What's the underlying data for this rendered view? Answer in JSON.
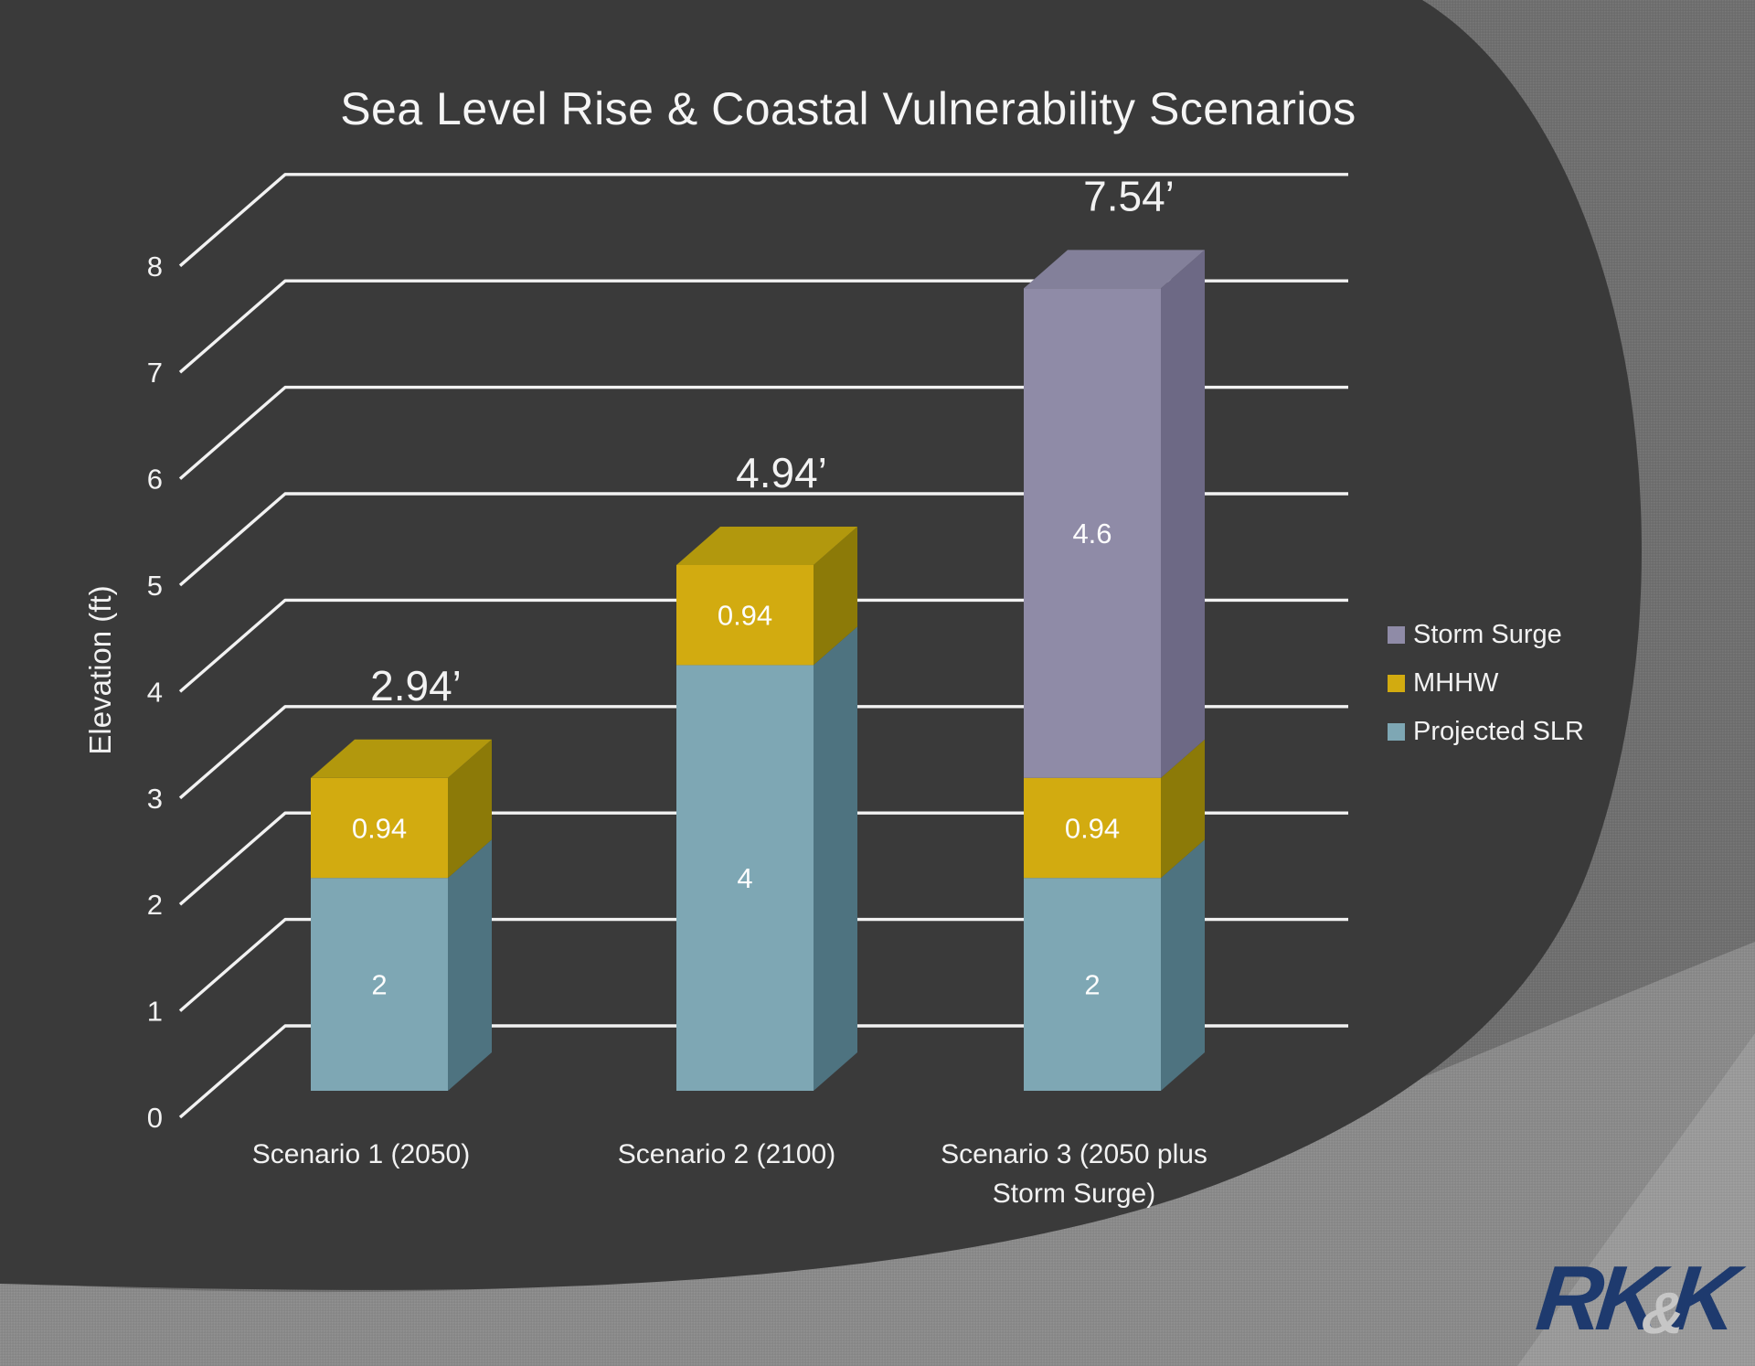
{
  "chart_data": {
    "type": "bar",
    "stacked": true,
    "effect_3d": true,
    "title": "Sea Level Rise & Coastal Vulnerability Scenarios",
    "xlabel": "",
    "ylabel": "Elevation (ft)",
    "ylim": [
      0,
      8
    ],
    "ytick_step": 1,
    "yticks": [
      "0",
      "1",
      "2",
      "3",
      "4",
      "5",
      "6",
      "7",
      "8"
    ],
    "grid": true,
    "legend_position": "right",
    "categories": [
      "Scenario 1 (2050)",
      "Scenario 2 (2100)",
      "Scenario 3 (2050 plus Storm Surge)"
    ],
    "category_label_lines": [
      [
        "Scenario 1 (2050)"
      ],
      [
        "Scenario 2 (2100)"
      ],
      [
        "Scenario 3 (2050 plus",
        "Storm Surge)"
      ]
    ],
    "series": [
      {
        "name": "Projected SLR",
        "values": [
          2,
          4,
          2
        ],
        "color": "#7ea7b4",
        "side_color": "#4e7380",
        "top_color": "#6d96a3"
      },
      {
        "name": "MHHW",
        "values": [
          0.94,
          0.94,
          0.94
        ],
        "color": "#d2ab10",
        "side_color": "#8c7a08",
        "top_color": "#b2980d"
      },
      {
        "name": "Storm Surge",
        "values": [
          0,
          0,
          4.6
        ],
        "color": "#8f8ba7",
        "side_color": "#6d6985",
        "top_color": "#83809a"
      }
    ],
    "segment_labels": [
      [
        "2",
        "0.94"
      ],
      [
        "4",
        "0.94"
      ],
      [
        "2",
        "0.94",
        "4.6"
      ]
    ],
    "totals": [
      "2.94’",
      "4.94’",
      "7.54’"
    ],
    "legend": [
      "Storm Surge",
      "MHHW",
      "Projected SLR"
    ]
  },
  "logo": {
    "part1": "RK",
    "amp": "&",
    "part2": "K"
  },
  "colors": {
    "slide_dark": "#3a3a3a",
    "band_mid": "#6f6f6f",
    "band_light": "#8a8a8a",
    "band_lighter": "#9a9a9a",
    "gridline": "#f2f2f2",
    "text": "#f2f2f2",
    "title_text": "#f5f5f5",
    "logo_navy": "#1e3a6e",
    "logo_amp": "#c6c6c6"
  }
}
